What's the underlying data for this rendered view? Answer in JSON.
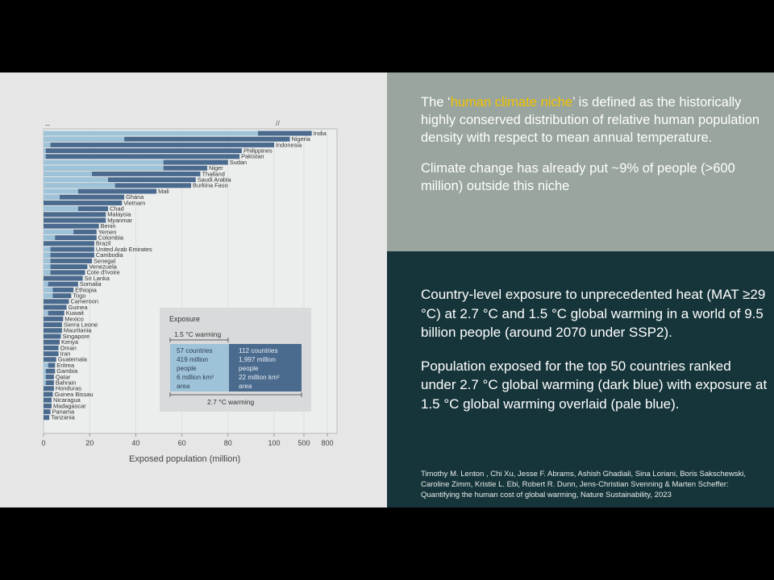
{
  "right_top": {
    "p1_prefix": "The ‘",
    "p1_highlight": "human climate niche",
    "p1_suffix": "’ is defined as the historically highly conserved distribution of relative human population density with respect to mean annual temperature.",
    "p2": "Climate change has already put ~9% of people (>600 million) outside this niche"
  },
  "right_bottom": {
    "p1": "Country-level exposure to unprecedented heat (MAT ≥29 °C) at 2.7 °C and 1.5 °C global warming in a world of 9.5 billion people (around 2070 under SSP2).",
    "p2": "Population exposed for the top 50 countries ranked under 2.7 °C global warming (dark blue) with exposure at 1.5 °C global warming overlaid (pale blue).",
    "citation": "Timothy M. Lenton , Chi Xu, Jesse F. Abrams, Ashish Ghadiali, Sina Loriani, Boris Sakschewski, Caroline Zimm, Kristie L. Ebi, Robert R. Dunn, Jens-Christian Svenning & Marten Scheffer: Quantifying the human cost of global warming, Nature Sustainability, 2023"
  },
  "colors": {
    "dark_blue": "#4a6a8e",
    "pale_blue": "#9ec3d8",
    "panel_bg": "#e6e6e6",
    "legend_bg": "#d9dadb"
  },
  "chart_data": {
    "type": "bar",
    "orientation": "horizontal",
    "panel_label": "--",
    "xlabel": "Exposed population (million)",
    "x_ticks": [
      "0",
      "20",
      "40",
      "60",
      "80",
      "100",
      "500",
      "800"
    ],
    "axis_break": "//",
    "xlim": [
      0,
      800
    ],
    "broken_axis_note": "linear 0–100, compressed 100–800",
    "grid": true,
    "categories": [
      "India",
      "Nigeria",
      "Indonesia",
      "Philippines",
      "Pakistan",
      "Sudan",
      "Niger",
      "Thailand",
      "Saudi Arabia",
      "Burkina Faso",
      "Mali",
      "Ghana",
      "Vietnam",
      "Chad",
      "Malaysia",
      "Myanmar",
      "Benin",
      "Yemen",
      "Colombia",
      "Brazil",
      "United Arab Emirates",
      "Cambodia",
      "Senegal",
      "Venezuela",
      "Cote d'Ivoire",
      "Sri Lanka",
      "Somalia",
      "Ethiopia",
      "Togo",
      "Cameroon",
      "Guinea",
      "Kuwait",
      "Mexico",
      "Sierra Leone",
      "Mauritania",
      "Singapore",
      "Kenya",
      "Oman",
      "Iran",
      "Guatemala",
      "Eritrea",
      "Gambia",
      "Qatar",
      "Bahrain",
      "Honduras",
      "Guinea Bissau",
      "Nicaragua",
      "Madagascar",
      "Panama",
      "Tanzania"
    ],
    "series": [
      {
        "name": "2.7 °C warming",
        "values": [
          600,
          300,
          100,
          86,
          85,
          80,
          71,
          68,
          66,
          64,
          49,
          35,
          34,
          28,
          27,
          27,
          24,
          23,
          23,
          22,
          22,
          22,
          21,
          19,
          18,
          17,
          15,
          13,
          12,
          11,
          10,
          9,
          8.5,
          8,
          8,
          7.5,
          7,
          6.5,
          6.5,
          5.5,
          5,
          5,
          4.5,
          4.5,
          4.5,
          4,
          3.5,
          3.5,
          3,
          2.5
        ]
      },
      {
        "name": "1.5 °C warming",
        "values": [
          93,
          35,
          3,
          1,
          1,
          52,
          52,
          21,
          28,
          31,
          15,
          7,
          0,
          15,
          0,
          0,
          0,
          13,
          5,
          0,
          3,
          3,
          3,
          3,
          3,
          0,
          2,
          4,
          4,
          0,
          0,
          2,
          0,
          0,
          0,
          0,
          0,
          0,
          0,
          0,
          2,
          1,
          1,
          1,
          0,
          0,
          0,
          0,
          0,
          0
        ]
      }
    ],
    "legend": {
      "title": "Exposure",
      "inner_label": "1.5 °C warming",
      "outer_label": "2.7 °C warming",
      "pale_lines": [
        "57 countries",
        "419 million",
        "people",
        "6 million km²",
        "area"
      ],
      "dark_lines": [
        "112 countries",
        "1,997 million",
        "people",
        "22 million km²",
        "area"
      ]
    }
  }
}
